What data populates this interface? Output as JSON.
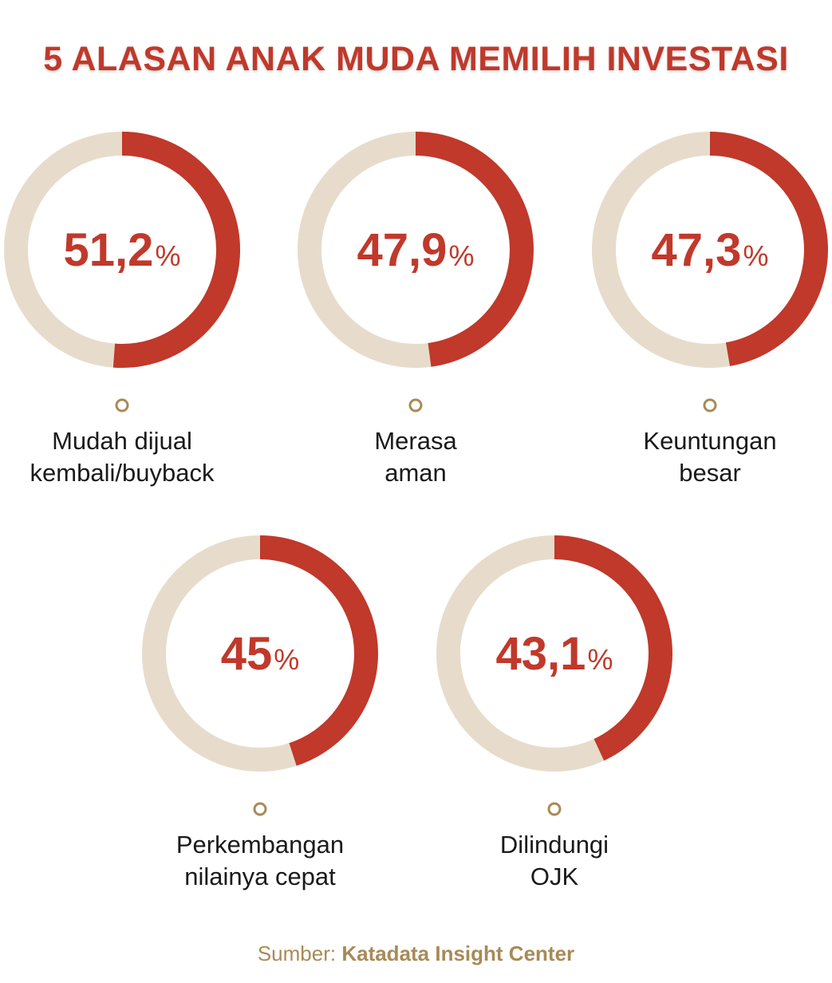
{
  "colors": {
    "accent": "#c0392b",
    "track": "#e7dccb",
    "marker": "#a88a57",
    "text": "#1a1a1a"
  },
  "chart_data": {
    "type": "pie",
    "title": "5 ALASAN ANAK MUDA MEMILIH INVESTASI",
    "unit": "%",
    "items": [
      {
        "value": 51.2,
        "display": "51,2",
        "label_lines": [
          "Mudah dijual",
          "kembali/buyback"
        ]
      },
      {
        "value": 47.9,
        "display": "47,9",
        "label_lines": [
          "Merasa",
          "aman"
        ]
      },
      {
        "value": 47.3,
        "display": "47,3",
        "label_lines": [
          "Keuntungan",
          "besar"
        ]
      },
      {
        "value": 45,
        "display": "45",
        "label_lines": [
          "Perkembangan",
          "nilainya cepat"
        ]
      },
      {
        "value": 43.1,
        "display": "43,1",
        "label_lines": [
          "Dilindungi",
          "OJK"
        ]
      }
    ]
  },
  "source": {
    "prefix": "Sumber:",
    "name": "Katadata Insight Center"
  }
}
